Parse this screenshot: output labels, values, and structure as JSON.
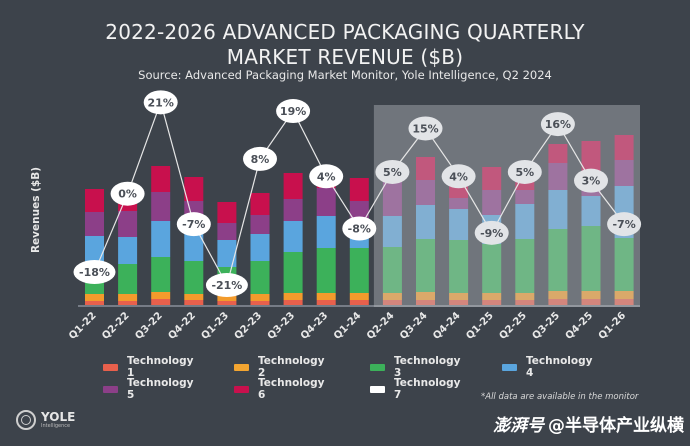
{
  "header": {
    "title_line1": "2022-2026 ADVANCED PACKAGING QUARTERLY",
    "title_line2": "MARKET REVENUE ($B)",
    "subtitle": "Source: Advanced Packaging Market Monitor, Yole Intelligence, Q2 2024"
  },
  "footer": {
    "note": "*All data are available in the monitor",
    "logo_name": "YOLE",
    "logo_sub": "Intelligence",
    "watermark_brand": "澎湃号",
    "watermark_text": "@半导体产业纵横"
  },
  "chart_data": {
    "type": "bar",
    "stacked": true,
    "title": "2022-2026 ADVANCED PACKAGING QUARTERLY MARKET REVENUE ($B)",
    "xlabel": "",
    "ylabel": "Revenues ($B)",
    "categories": [
      "Q1-22",
      "Q2-22",
      "Q3-22",
      "Q4-22",
      "Q1-23",
      "Q2-23",
      "Q3-23",
      "Q4-23",
      "Q1-24",
      "Q2-24",
      "Q3-24",
      "Q4-24",
      "Q1-25",
      "Q2-25",
      "Q3-25",
      "Q4-25",
      "Q1-26"
    ],
    "forecast_start_index": 9,
    "series": [
      {
        "name": "Technology 1",
        "color": "#e8604c",
        "values": [
          0.4,
          0.4,
          0.6,
          0.5,
          0.4,
          0.4,
          0.5,
          0.5,
          0.5,
          0.5,
          0.5,
          0.5,
          0.5,
          0.5,
          0.6,
          0.6,
          0.6
        ]
      },
      {
        "name": "Technology 2",
        "color": "#f39b2c",
        "values": [
          0.7,
          0.7,
          0.7,
          0.6,
          0.6,
          0.7,
          0.7,
          0.7,
          0.7,
          0.7,
          0.8,
          0.7,
          0.7,
          0.7,
          0.8,
          0.8,
          0.8
        ]
      },
      {
        "name": "Technology 3",
        "color": "#3cb15a",
        "values": [
          3.0,
          3.0,
          3.5,
          3.3,
          2.8,
          3.3,
          4.1,
          4.5,
          4.5,
          4.6,
          5.3,
          5.3,
          4.9,
          5.4,
          6.2,
          6.5,
          5.3
        ]
      },
      {
        "name": "Technology 4",
        "color": "#5aa5de",
        "values": [
          2.8,
          2.7,
          3.6,
          3.9,
          2.7,
          2.7,
          3.1,
          3.2,
          2.7,
          3.1,
          3.4,
          3.1,
          2.9,
          3.5,
          3.9,
          3.0,
          5.2
        ]
      },
      {
        "name": "Technology 5",
        "color": "#8c3f88",
        "values": [
          2.4,
          2.6,
          2.9,
          2.1,
          1.7,
          1.9,
          2.2,
          2.8,
          2.0,
          3.4,
          2.5,
          1.1,
          2.5,
          1.4,
          2.7,
          2.5,
          2.6
        ]
      },
      {
        "name": "Technology 6",
        "color": "#c8104d",
        "values": [
          2.3,
          0.9,
          2.6,
          2.4,
          2.1,
          2.2,
          2.6,
          2.1,
          2.3,
          0.5,
          2.3,
          3.0,
          2.3,
          2.4,
          1.9,
          3.0,
          2.5
        ]
      },
      {
        "name": "Technology 7",
        "color": "#ffffff",
        "values": [
          0,
          0,
          0,
          0,
          0,
          0,
          0,
          0,
          0,
          0,
          0,
          0,
          0,
          0,
          0,
          0,
          0
        ]
      }
    ],
    "growth_line": {
      "name": "QoQ growth",
      "labels": [
        "-18%",
        "0%",
        "21%",
        "-7%",
        "-21%",
        "8%",
        "19%",
        "4%",
        "-8%",
        "5%",
        "15%",
        "4%",
        "-9%",
        "5%",
        "16%",
        "3%",
        "-7%"
      ],
      "values": [
        -18,
        0,
        21,
        -7,
        -21,
        8,
        19,
        4,
        -8,
        5,
        15,
        4,
        -9,
        5,
        16,
        3,
        -7
      ]
    },
    "legend": [
      "Technology 1",
      "Technology 2",
      "Technology 3",
      "Technology 4",
      "Technology 5",
      "Technology 6",
      "Technology 7"
    ],
    "legend_position": "bottom",
    "grid": false
  }
}
